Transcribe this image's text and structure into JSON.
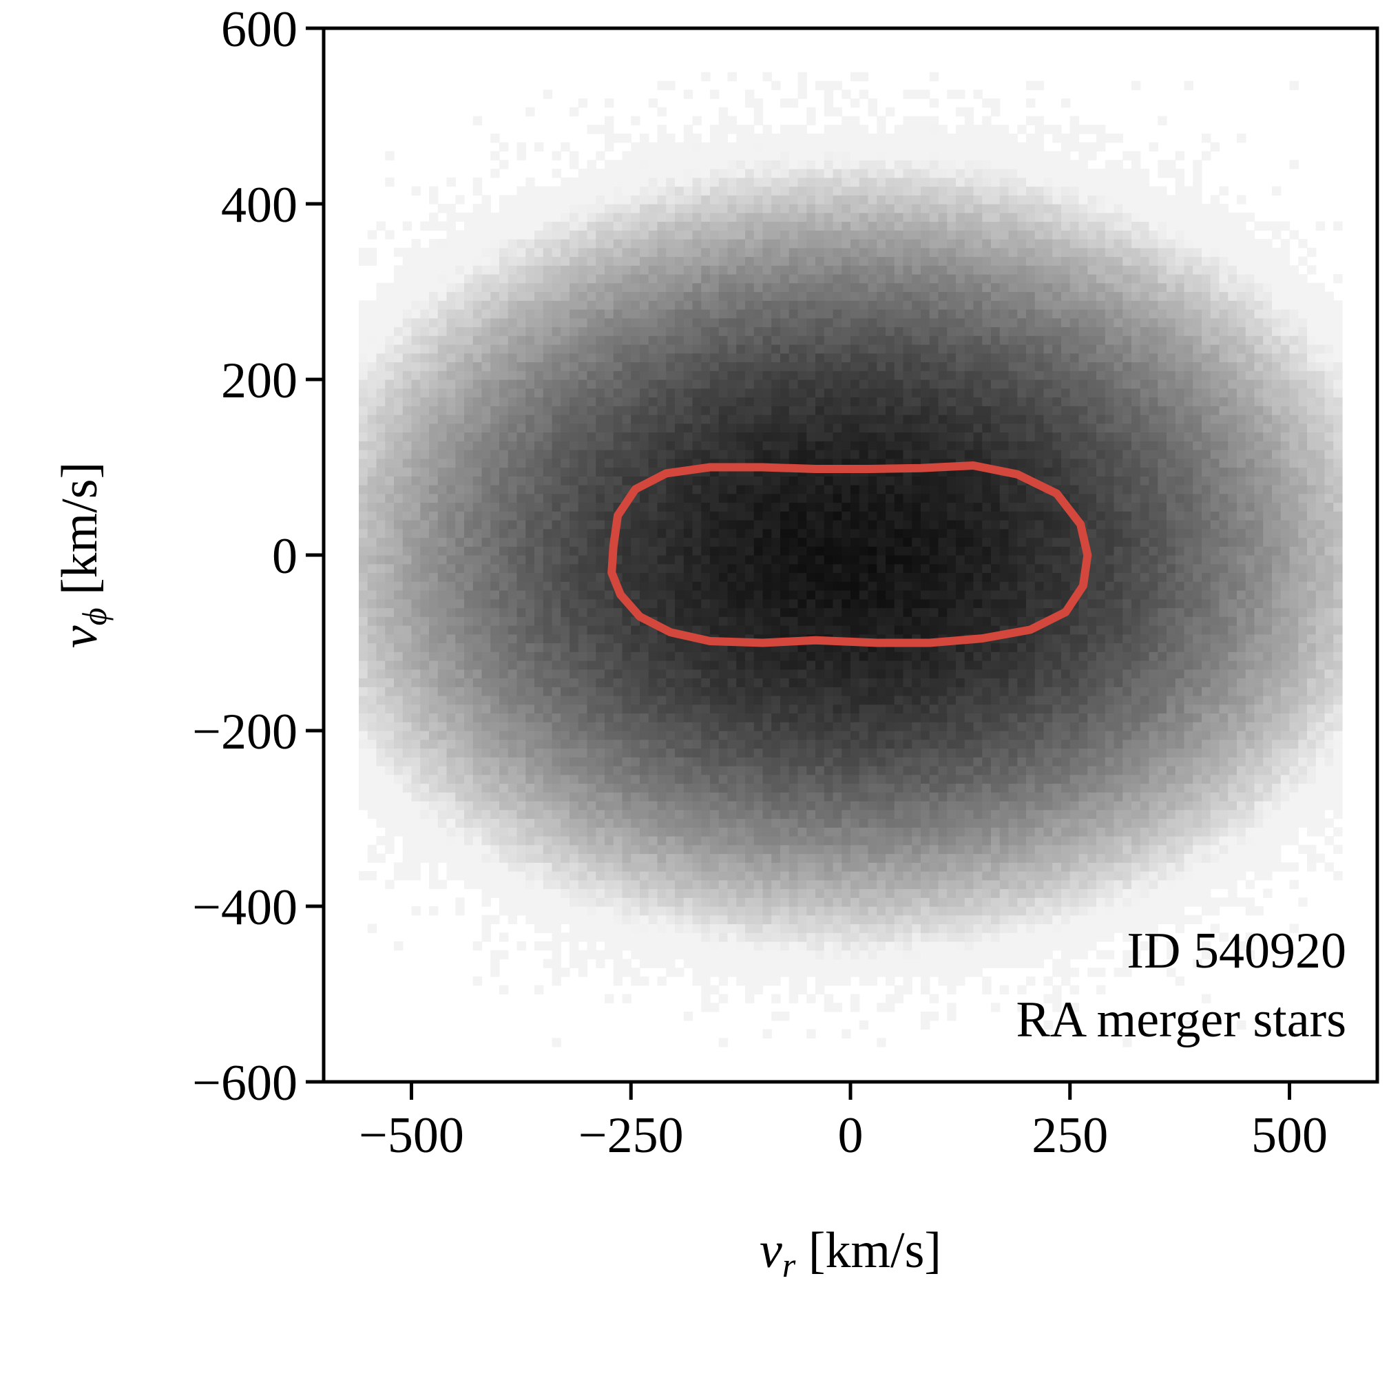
{
  "chart_data": {
    "type": "heatmap",
    "title": "",
    "xlabel": {
      "var": "v",
      "sub": "r",
      "unit": "[km/s]"
    },
    "ylabel": {
      "var": "v",
      "sub": "ϕ",
      "unit": "[km/s]"
    },
    "xlim": [
      -600,
      600
    ],
    "ylim": [
      -600,
      600
    ],
    "xticks": [
      -500,
      -250,
      0,
      250,
      500
    ],
    "yticks": [
      -600,
      -400,
      -200,
      0,
      200,
      400,
      600
    ],
    "xtick_labels": [
      "−500",
      "−250",
      "0",
      "250",
      "500"
    ],
    "ytick_labels": [
      "−600",
      "−400",
      "−200",
      "0",
      "200",
      "400",
      "600"
    ],
    "grid": false,
    "colormap": "greys",
    "histogram": {
      "center": [
        0,
        0
      ],
      "sigma_vr": 175,
      "sigma_vphi": 125,
      "bin_width": 10
    },
    "annotations": [
      "ID 540920",
      "RA merger stars"
    ],
    "contour": {
      "color": "#d4473c",
      "points": [
        [
          -270,
          10
        ],
        [
          -265,
          45
        ],
        [
          -245,
          75
        ],
        [
          -210,
          93
        ],
        [
          -160,
          100
        ],
        [
          -100,
          100
        ],
        [
          -40,
          98
        ],
        [
          20,
          98
        ],
        [
          80,
          99
        ],
        [
          140,
          102
        ],
        [
          190,
          92
        ],
        [
          235,
          70
        ],
        [
          262,
          35
        ],
        [
          270,
          0
        ],
        [
          265,
          -35
        ],
        [
          245,
          -65
        ],
        [
          205,
          -85
        ],
        [
          150,
          -95
        ],
        [
          90,
          -100
        ],
        [
          30,
          -100
        ],
        [
          -40,
          -97
        ],
        [
          -100,
          -100
        ],
        [
          -160,
          -98
        ],
        [
          -205,
          -88
        ],
        [
          -240,
          -70
        ],
        [
          -262,
          -45
        ],
        [
          -272,
          -20
        ]
      ]
    }
  },
  "colors": {
    "axes": "#000000",
    "contour": "#d4473c",
    "background": "#ffffff"
  }
}
